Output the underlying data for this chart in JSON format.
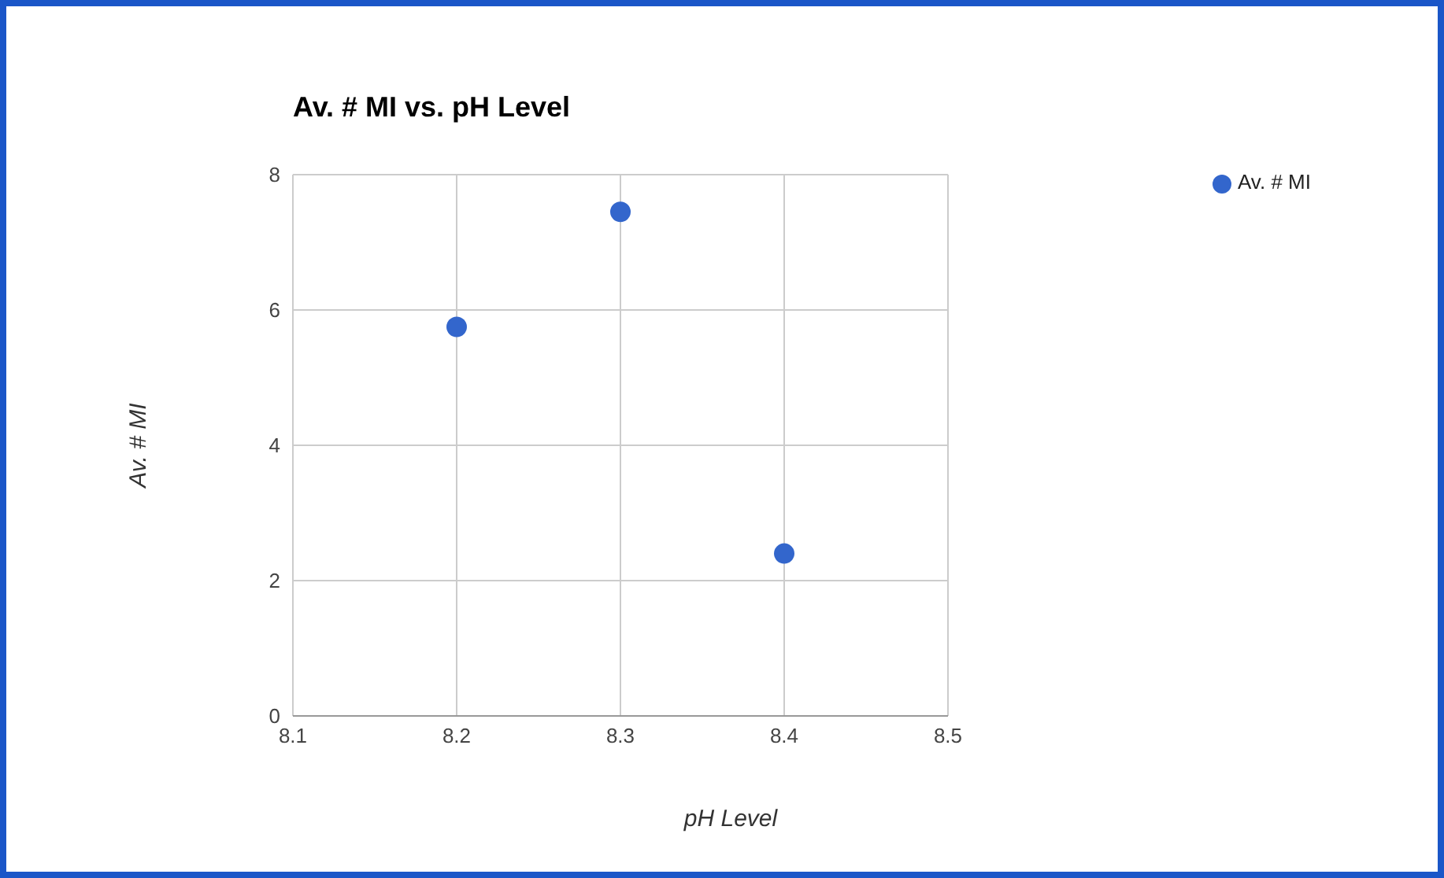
{
  "chart_data": {
    "type": "scatter",
    "title": "Av. # MI vs. pH Level",
    "xlabel": "pH Level",
    "ylabel": "Av. # MI",
    "x": [
      8.2,
      8.3,
      8.4
    ],
    "series": [
      {
        "name": "Av. # MI",
        "color": "#3366cc",
        "values": [
          5.75,
          7.45,
          2.4
        ]
      }
    ],
    "xlim": [
      8.1,
      8.5
    ],
    "xticks": [
      8.1,
      8.2,
      8.3,
      8.4,
      8.5
    ],
    "ylim": [
      0,
      8
    ],
    "yticks": [
      0,
      2,
      4,
      6,
      8
    ],
    "grid": true,
    "legend": "top right",
    "marker": "circle"
  }
}
